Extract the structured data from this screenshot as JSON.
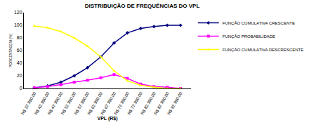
{
  "chart_data": {
    "type": "line",
    "title": "DISTRIBUIÇÃO DE FREQUÊNCIAS DO VPL",
    "x_label": "VPL (R$)",
    "y_label": "PORCENTAGEM (%)",
    "categories": [
      "R$ 37.990,00",
      "R$ 42.990,00",
      "R$ 47.990,00",
      "R$ 52.990,00",
      "R$ 57.990,00",
      "R$ 62.990,00",
      "R$ 67.990,00",
      "R$ 72.990,00",
      "R$ 77.990,00",
      "R$ 82.990,00",
      "R$ 87.990,00",
      "R$ 92.990,00"
    ],
    "series": [
      {
        "name": "FUNÇÃO CUMULATIVA CRESCENTE",
        "color": "#000080",
        "marker": "diamond",
        "values": [
          1,
          4,
          10,
          20,
          33,
          50,
          72,
          88,
          95,
          98,
          100,
          100
        ]
      },
      {
        "name": "FUNÇÃO PROBABILIDADE",
        "color": "#ff00ff",
        "marker": "square",
        "values": [
          1,
          3,
          6,
          10,
          13,
          17,
          22,
          16,
          7,
          3,
          2,
          0
        ]
      },
      {
        "name": "FUNÇÃO CUMULATIVA DESCRESCENTE",
        "color": "#ffff00",
        "marker": "triangle-up",
        "values": [
          99,
          96,
          90,
          80,
          67,
          50,
          28,
          12,
          5,
          2,
          0,
          0
        ]
      }
    ],
    "ylim": [
      0,
      120
    ],
    "yticks": [
      0,
      20,
      40,
      60,
      80,
      100,
      120
    ],
    "grid": false,
    "legend": "right"
  }
}
